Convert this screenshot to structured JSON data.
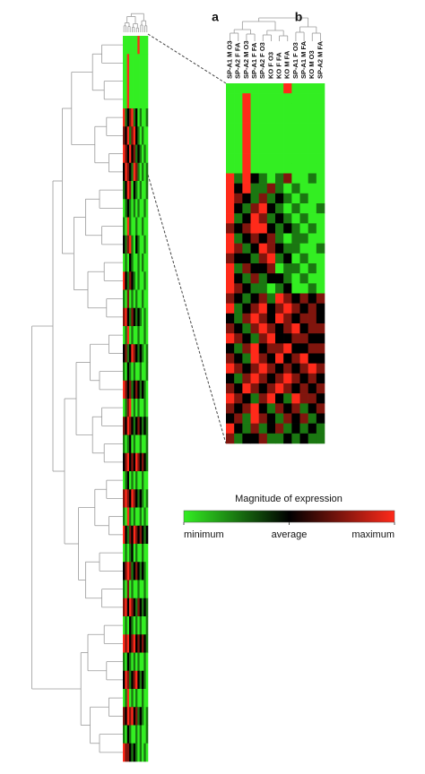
{
  "chart_data": [
    {
      "type": "heatmap",
      "values": [
        [
          -2,
          -2,
          -2,
          -2,
          -2,
          -2,
          -2,
          2,
          -2,
          -2,
          -2,
          -2
        ],
        [
          -2,
          -2,
          2,
          -2,
          -2,
          -2,
          -2,
          -2,
          -2,
          -2,
          -2,
          -2
        ],
        [
          -2,
          -2,
          2,
          -2,
          -2,
          -2,
          -2,
          -2,
          -2,
          -2,
          -2,
          -2
        ],
        [
          -2,
          -2,
          2,
          -2,
          -2,
          -2,
          -2,
          -2,
          -2,
          -2,
          -2,
          -2
        ],
        [
          2,
          -1,
          0,
          1,
          2,
          -1,
          0,
          -2,
          -1,
          -2,
          -2,
          -1
        ],
        [
          1,
          0,
          2,
          -1,
          1,
          2,
          0,
          -1,
          -2,
          -1,
          -2,
          -2
        ],
        [
          2,
          1,
          0,
          2,
          0,
          1,
          -1,
          0,
          -1,
          -2,
          -1,
          -2
        ],
        [
          0,
          2,
          1,
          0,
          -1,
          2,
          1,
          -1,
          -2,
          -1,
          -2,
          -1
        ],
        [
          -1,
          0,
          2,
          1,
          -2,
          0,
          -1,
          -2,
          -1,
          -2,
          -2,
          -1
        ],
        [
          -2,
          -1,
          0,
          -1,
          -2,
          -1,
          -2,
          -1,
          -2,
          -2,
          -1,
          -2
        ],
        [
          -1,
          -2,
          2,
          -1,
          -2,
          -2,
          -1,
          -2,
          -2,
          -1,
          -2,
          -2
        ],
        [
          0,
          -1,
          1,
          2,
          -1,
          -2,
          0,
          -1,
          -2,
          -2,
          -1,
          -2
        ],
        [
          -2,
          -1,
          -2,
          0,
          -1,
          -2,
          -2,
          -1,
          -2,
          -1,
          -2,
          -2
        ],
        [
          2,
          0,
          -1,
          1,
          0,
          -1,
          -2,
          -1,
          -2,
          -2,
          -1,
          -2
        ],
        [
          -1,
          -2,
          1,
          -2,
          -1,
          -2,
          -1,
          -2,
          -2,
          -1,
          -2,
          -2
        ],
        [
          1,
          2,
          0,
          -1,
          1,
          0,
          -1,
          0,
          -1,
          -2,
          -1,
          -2
        ],
        [
          -2,
          -1,
          2,
          -2,
          -1,
          -2,
          -2,
          -1,
          -2,
          -2,
          -1,
          -2
        ],
        [
          0,
          1,
          -1,
          0,
          2,
          1,
          0,
          -1,
          0,
          -1,
          -2,
          -1
        ],
        [
          -1,
          -2,
          0,
          -1,
          -2,
          -1,
          -2,
          -2,
          -1,
          -2,
          -2,
          -1
        ],
        [
          2,
          1,
          0,
          1,
          -1,
          0,
          1,
          0,
          -1,
          0,
          -1,
          -2
        ],
        [
          -2,
          -1,
          1,
          2,
          -2,
          -1,
          -2,
          -1,
          -2,
          -2,
          -1,
          -2
        ],
        [
          1,
          0,
          2,
          1,
          0,
          -1,
          0,
          1,
          0,
          -1,
          0,
          -1
        ],
        [
          -1,
          -2,
          -1,
          0,
          -2,
          -1,
          -2,
          -2,
          -1,
          -2,
          -2,
          -1
        ],
        [
          0,
          1,
          2,
          0,
          1,
          0,
          2,
          1,
          0,
          1,
          0,
          -1
        ],
        [
          -2,
          -1,
          0,
          -2,
          -1,
          -2,
          -1,
          -2,
          -2,
          -1,
          -2,
          -2
        ],
        [
          1,
          2,
          1,
          0,
          2,
          1,
          0,
          -1,
          0,
          -1,
          -2,
          -1
        ],
        [
          -1,
          -2,
          2,
          -1,
          -2,
          -1,
          -2,
          -2,
          -1,
          -2,
          -1,
          -2
        ],
        [
          2,
          0,
          -1,
          1,
          0,
          2,
          1,
          0,
          1,
          0,
          -1,
          0
        ],
        [
          -2,
          -1,
          -2,
          -1,
          0,
          -2,
          -1,
          -2,
          -2,
          -1,
          -2,
          -2
        ],
        [
          0,
          1,
          2,
          1,
          -1,
          0,
          1,
          0,
          -1,
          0,
          -1,
          -2
        ],
        [
          -1,
          -2,
          1,
          -2,
          -1,
          -2,
          -2,
          -1,
          -2,
          -2,
          -1,
          -2
        ],
        [
          1,
          2,
          0,
          2,
          1,
          0,
          -1,
          1,
          0,
          -1,
          0,
          -1
        ],
        [
          -2,
          -1,
          -2,
          0,
          -1,
          -2,
          -1,
          -2,
          -1,
          -2,
          -2,
          -1
        ],
        [
          2,
          1,
          2,
          0,
          1,
          2,
          0,
          1,
          0,
          1,
          0,
          -1
        ],
        [
          -1,
          -2,
          0,
          -1,
          -2,
          -1,
          -2,
          -1,
          -2,
          -2,
          -1,
          -2
        ],
        [
          0,
          2,
          1,
          -1,
          0,
          1,
          2,
          0,
          -1,
          0,
          -1,
          -2
        ],
        [
          -2,
          -1,
          2,
          -2,
          -1,
          -2,
          -1,
          -2,
          -2,
          -1,
          -2,
          -2
        ],
        [
          1,
          0,
          2,
          1,
          2,
          0,
          1,
          -1,
          0,
          -1,
          -2,
          -1
        ],
        [
          -1,
          -2,
          0,
          -1,
          -2,
          -2,
          -1,
          -2,
          -1,
          -2,
          -2,
          -1
        ],
        [
          2,
          1,
          1,
          0,
          -1,
          0,
          -1,
          -2,
          -1,
          -2,
          -1,
          -2
        ]
      ]
    },
    {
      "type": "heatmap",
      "panel_labels": [
        "a",
        "b"
      ],
      "columns": [
        "SP-A1 M O3",
        "SP-A2 F FA",
        "SP-A2 M O3",
        "SP-A1 F FA",
        "SP-A2 F O3",
        "KO F O3",
        "KO F FA",
        "KO M FA",
        "SP-A1 F O3",
        "SP-A1 M FA",
        "KO M O3",
        "SP-A2 M FA"
      ],
      "values": [
        [
          -2,
          -2,
          -2,
          -2,
          -2,
          -2,
          -2,
          2,
          -2,
          -2,
          -2,
          -2
        ],
        [
          -2,
          -2,
          2,
          -2,
          -2,
          -2,
          -2,
          -2,
          -2,
          -2,
          -2,
          -2
        ],
        [
          -2,
          -2,
          2,
          -2,
          -2,
          -2,
          -2,
          -2,
          -2,
          -2,
          -2,
          -2
        ],
        [
          -2,
          -2,
          2,
          -2,
          -2,
          -2,
          -2,
          -2,
          -2,
          -2,
          -2,
          -2
        ],
        [
          -2,
          -2,
          2,
          -2,
          -2,
          -2,
          -2,
          -2,
          -2,
          -2,
          -2,
          -2
        ],
        [
          -2,
          -2,
          2,
          -2,
          -2,
          -2,
          -2,
          -2,
          -2,
          -2,
          -2,
          -2
        ],
        [
          -2,
          -2,
          2,
          -2,
          -2,
          -2,
          -2,
          -2,
          -2,
          -2,
          -2,
          -2
        ],
        [
          -2,
          -2,
          2,
          -2,
          -2,
          -2,
          -2,
          -2,
          -2,
          -2,
          -2,
          -2
        ],
        [
          -2,
          -2,
          2,
          -2,
          -2,
          -2,
          -2,
          -2,
          -2,
          -2,
          -2,
          -2
        ],
        [
          2,
          -1,
          2,
          0,
          -1,
          -2,
          -1,
          1,
          -2,
          -2,
          -1,
          -2
        ],
        [
          2,
          0,
          2,
          -1,
          -1,
          1,
          -1,
          -2,
          -1,
          -2,
          -2,
          -2
        ],
        [
          2,
          1,
          0,
          -1,
          1,
          -1,
          0,
          -1,
          -2,
          -1,
          -2,
          -2
        ],
        [
          2,
          0,
          -1,
          1,
          2,
          0,
          -1,
          -2,
          -1,
          -2,
          -2,
          -1
        ],
        [
          2,
          -1,
          0,
          2,
          1,
          -1,
          0,
          -1,
          -2,
          -1,
          -2,
          -2
        ],
        [
          1,
          0,
          1,
          2,
          2,
          0,
          -1,
          0,
          -1,
          -2,
          -1,
          -2
        ],
        [
          2,
          -1,
          0,
          1,
          0,
          1,
          -1,
          -2,
          -1,
          -1,
          -2,
          -2
        ],
        [
          2,
          1,
          -1,
          0,
          2,
          1,
          0,
          -1,
          -1,
          -2,
          -2,
          -1
        ],
        [
          1,
          0,
          0,
          -1,
          1,
          2,
          -1,
          0,
          -2,
          -1,
          -2,
          -2
        ],
        [
          2,
          -1,
          1,
          0,
          0,
          1,
          -2,
          -1,
          -1,
          -2,
          -1,
          -2
        ],
        [
          2,
          0,
          -1,
          1,
          -1,
          0,
          0,
          -1,
          -2,
          -1,
          -2,
          -2
        ],
        [
          2,
          1,
          0,
          -1,
          -1,
          -2,
          -1,
          0,
          -2,
          -2,
          -1,
          -2
        ],
        [
          1,
          0,
          -1,
          0,
          1,
          -1,
          2,
          1,
          0,
          1,
          0,
          1
        ],
        [
          2,
          -1,
          0,
          1,
          2,
          0,
          1,
          2,
          1,
          0,
          1,
          0
        ],
        [
          0,
          -1,
          1,
          2,
          1,
          0,
          2,
          1,
          0,
          1,
          1,
          0
        ],
        [
          1,
          0,
          -1,
          1,
          2,
          1,
          0,
          1,
          2,
          0,
          1,
          1
        ],
        [
          2,
          1,
          0,
          -1,
          1,
          2,
          0,
          0,
          1,
          1,
          0,
          0
        ],
        [
          0,
          -1,
          1,
          2,
          0,
          1,
          1,
          2,
          0,
          0,
          1,
          1
        ],
        [
          1,
          0,
          -1,
          2,
          1,
          0,
          2,
          0,
          1,
          2,
          0,
          0
        ],
        [
          2,
          1,
          0,
          1,
          2,
          1,
          0,
          1,
          0,
          1,
          2,
          1
        ],
        [
          0,
          -1,
          1,
          2,
          1,
          0,
          1,
          2,
          1,
          0,
          1,
          0
        ],
        [
          1,
          0,
          2,
          1,
          0,
          1,
          2,
          1,
          0,
          1,
          0,
          1
        ],
        [
          2,
          1,
          0,
          -1,
          1,
          2,
          0,
          -1,
          2,
          1,
          1,
          0
        ],
        [
          1,
          0,
          1,
          2,
          0,
          -1,
          1,
          0,
          1,
          -1,
          0,
          1
        ],
        [
          0,
          1,
          -1,
          2,
          1,
          0,
          -1,
          1,
          0,
          1,
          -1,
          0
        ],
        [
          2,
          0,
          -1,
          1,
          -1,
          0,
          1,
          -1,
          0,
          -1,
          0,
          -1
        ],
        [
          1,
          -1,
          0,
          0,
          1,
          -1,
          -1,
          0,
          -1,
          0,
          -1,
          -1
        ]
      ],
      "colorbar": {
        "title": "Magnitude of expression",
        "zlim": [
          -2,
          2
        ],
        "colors": [
          "#33ee22",
          "#000000",
          "#ff2a1a"
        ],
        "ticks": [
          {
            "value": -2,
            "label": "minimum"
          },
          {
            "value": 0,
            "label": "average"
          },
          {
            "value": 2,
            "label": "maximum"
          }
        ]
      }
    }
  ]
}
